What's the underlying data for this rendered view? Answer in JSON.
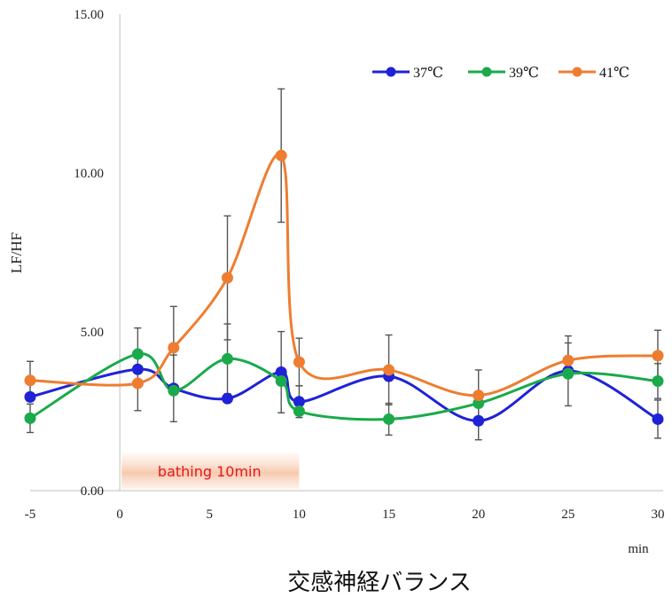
{
  "chart_data": {
    "type": "line",
    "title": "交感神経バランス",
    "ylabel": "LF/HF",
    "xlabel": "min",
    "x": [
      -5,
      1,
      3,
      6,
      9,
      10,
      15,
      20,
      25,
      30
    ],
    "x_ticks": [
      "-5",
      "0",
      "5",
      "10",
      "15",
      "20",
      "25",
      "30"
    ],
    "x_tick_values": [
      -5,
      0,
      5,
      10,
      15,
      20,
      25,
      30
    ],
    "y_ticks": [
      "0.00",
      "5.00",
      "10.00",
      "15.00"
    ],
    "y_tick_values": [
      0,
      5,
      10,
      15
    ],
    "xlim": [
      -5,
      30
    ],
    "ylim": [
      0,
      15
    ],
    "grid": false,
    "legend_position": "top-right",
    "smooth": true,
    "series": [
      {
        "name": "37℃",
        "color": "#1f22d6",
        "values": [
          2.95,
          3.82,
          3.22,
          2.9,
          3.73,
          2.8,
          3.6,
          2.2,
          3.77,
          2.25
        ],
        "errors": [
          null,
          1.3,
          1.05,
          null,
          1.28,
          0.5,
          null,
          0.6,
          1.1,
          0.6
        ]
      },
      {
        "name": "39℃",
        "color": "#1aaa4b",
        "values": [
          2.28,
          4.3,
          3.15,
          4.15,
          3.45,
          2.5,
          2.25,
          2.75,
          3.68,
          3.45
        ],
        "errors": [
          0.45,
          null,
          null,
          1.1,
          null,
          null,
          0.5,
          null,
          null,
          0.55
        ]
      },
      {
        "name": "41℃",
        "color": "#ee7d31",
        "values": [
          3.47,
          3.38,
          4.5,
          6.7,
          10.55,
          4.05,
          3.8,
          3.0,
          4.1,
          4.25
        ],
        "errors": [
          0.6,
          null,
          1.3,
          1.95,
          2.1,
          0.75,
          1.1,
          0.8,
          0.55,
          0.8
        ]
      }
    ],
    "annotation": {
      "text": "bathing 10min",
      "x_range": [
        0,
        10
      ]
    }
  }
}
